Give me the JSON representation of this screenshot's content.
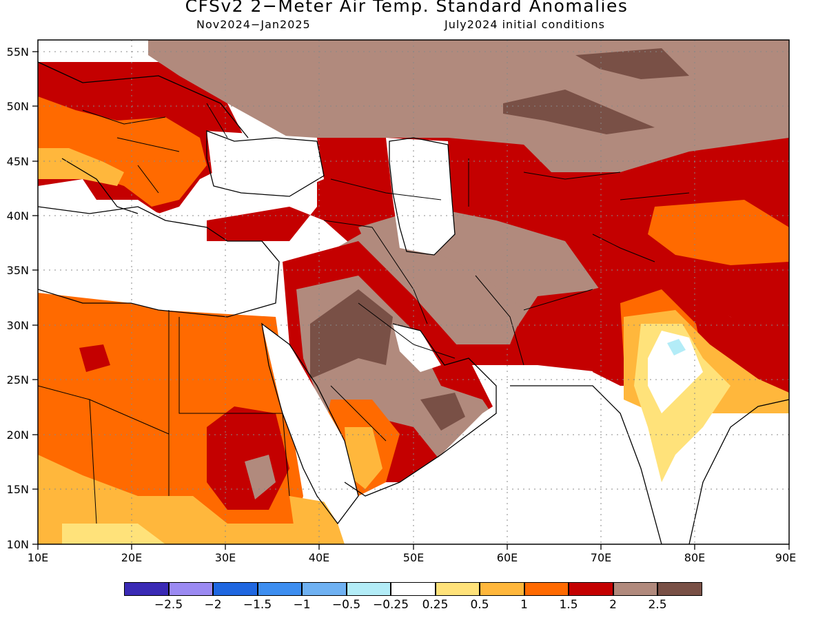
{
  "title": "CFSv2 2−Meter Air Temp. Standard Anomalies",
  "subtitle_left": "Nov2024−Jan2025",
  "subtitle_right": "July2024 initial conditions",
  "map": {
    "lat_labels": [
      "55N",
      "50N",
      "45N",
      "40N",
      "35N",
      "30N",
      "25N",
      "20N",
      "15N",
      "10N"
    ],
    "lon_labels": [
      "10E",
      "20E",
      "30E",
      "40E",
      "50E",
      "60E",
      "70E",
      "80E",
      "90E"
    ],
    "lat_range": [
      10,
      56
    ],
    "lon_range": [
      10,
      90
    ],
    "grid": "dotted",
    "regions": [
      {
        "name": "europe",
        "anomaly_band": "1.5-2"
      },
      {
        "name": "central-asia",
        "anomaly_band": "2-2.5"
      },
      {
        "name": "arabia",
        "anomaly_band": "2-2.5"
      },
      {
        "name": "north-africa",
        "anomaly_band": "1-1.5"
      },
      {
        "name": "india",
        "anomaly_band": "0.25-0.5"
      }
    ]
  },
  "legend": {
    "colors": [
      "#3a2ab5",
      "#9b8af2",
      "#1f67e0",
      "#3d8ef0",
      "#6fb1f2",
      "#b3ecf7",
      "#ffffff",
      "#ffe27a",
      "#ffb73c",
      "#ff6a00",
      "#c40000",
      "#b18a7d",
      "#795046"
    ],
    "labels": [
      "−2.5",
      "−2",
      "−1.5",
      "−1",
      "−0.5",
      "−0.25",
      "0.25",
      "0.5",
      "1",
      "1.5",
      "2",
      "2.5"
    ]
  }
}
